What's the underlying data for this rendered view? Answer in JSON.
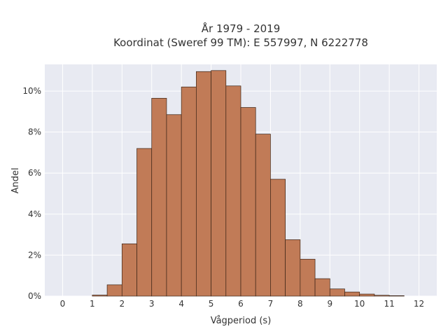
{
  "chart_data": {
    "type": "bar",
    "title_lines": [
      "År 1979 - 2019",
      "Koordinat (Sweref 99 TM): E 557997, N 6222778"
    ],
    "xlabel": "Vågperiod (s)",
    "ylabel": "Andel",
    "xlim": [
      -0.6,
      12.6
    ],
    "ylim": [
      0,
      11.3
    ],
    "x_ticks": [
      0,
      1,
      2,
      3,
      4,
      5,
      6,
      7,
      8,
      9,
      10,
      11,
      12
    ],
    "y_ticks": [
      0,
      2,
      4,
      6,
      8,
      10
    ],
    "y_tick_suffix": "%",
    "grid": true,
    "background_color": "#e8eaf2",
    "bar_color": "#c17b57",
    "bin_width": 0.5,
    "bins": [
      {
        "start": 1.0,
        "value": 0.05
      },
      {
        "start": 1.5,
        "value": 0.55
      },
      {
        "start": 2.0,
        "value": 2.55
      },
      {
        "start": 2.5,
        "value": 7.2
      },
      {
        "start": 3.0,
        "value": 9.65
      },
      {
        "start": 3.5,
        "value": 8.85
      },
      {
        "start": 4.0,
        "value": 10.2
      },
      {
        "start": 4.5,
        "value": 10.95
      },
      {
        "start": 5.0,
        "value": 11.0
      },
      {
        "start": 5.5,
        "value": 10.25
      },
      {
        "start": 6.0,
        "value": 9.2
      },
      {
        "start": 6.5,
        "value": 7.9
      },
      {
        "start": 7.0,
        "value": 5.7
      },
      {
        "start": 7.5,
        "value": 2.75
      },
      {
        "start": 8.0,
        "value": 1.8
      },
      {
        "start": 8.5,
        "value": 0.85
      },
      {
        "start": 9.0,
        "value": 0.35
      },
      {
        "start": 9.5,
        "value": 0.2
      },
      {
        "start": 10.0,
        "value": 0.1
      },
      {
        "start": 10.5,
        "value": 0.04
      },
      {
        "start": 11.0,
        "value": 0.02
      }
    ]
  }
}
